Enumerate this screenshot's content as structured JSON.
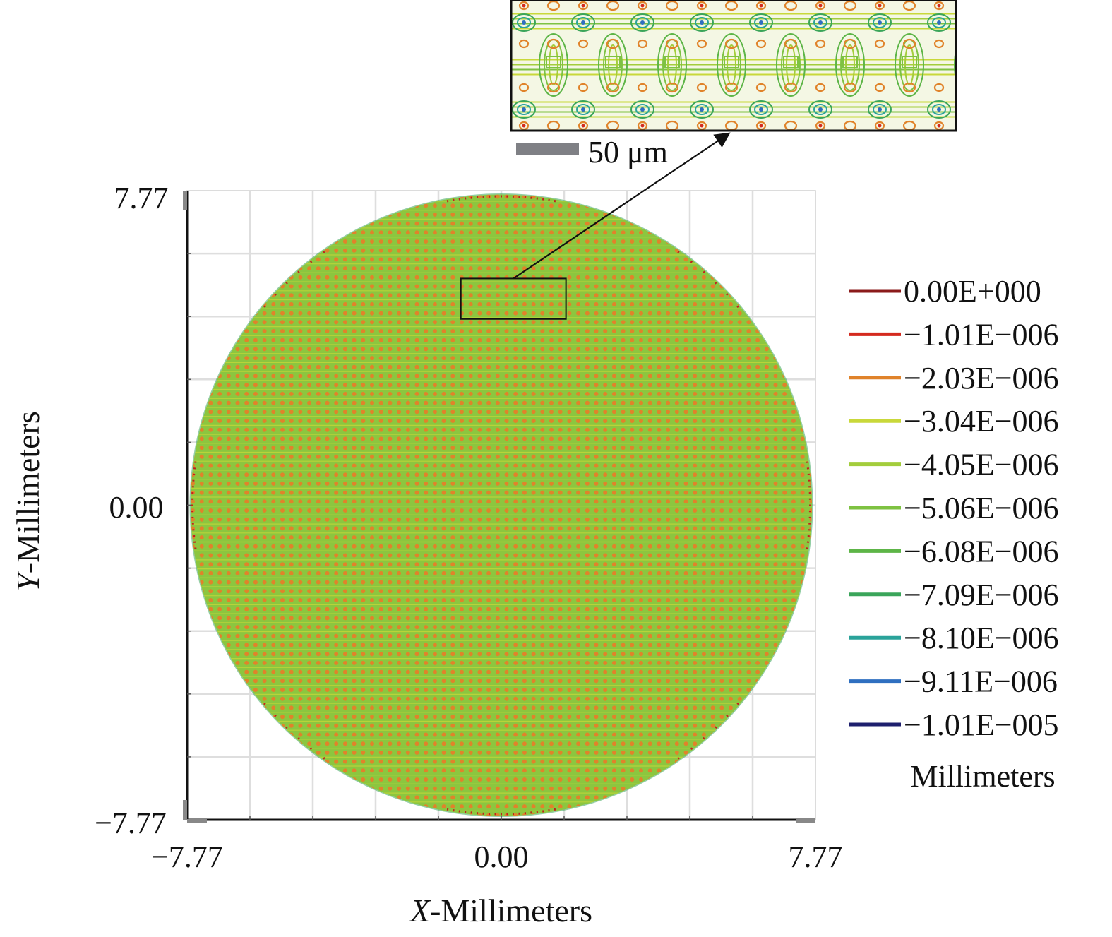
{
  "chart_data": {
    "type": "heatmap",
    "description_kind": "contour map of surface sag over a circular aperture",
    "xlabel": {
      "italic": "X",
      "rest": "-Millimeters"
    },
    "ylabel": {
      "italic": "Y",
      "rest": "-Millimeters"
    },
    "xlim": [
      -7.77,
      7.77
    ],
    "ylim": [
      -7.77,
      7.77
    ],
    "x_ticks": [
      "−7.77",
      "0.00",
      "7.77"
    ],
    "y_ticks": [
      "7.77",
      "0.00",
      "−7.77"
    ],
    "aperture_radius": 7.77,
    "grid": true,
    "legend_position": "right",
    "legend_unit": "Millimeters",
    "contour_levels": [
      {
        "label": "0.00E+000",
        "value": 0.0,
        "color": "#8b1a1a"
      },
      {
        "label": "−1.01E−006",
        "value": -1.01e-06,
        "color": "#d42a1e"
      },
      {
        "label": "−2.03E−006",
        "value": -2.03e-06,
        "color": "#e0832a"
      },
      {
        "label": "−3.04E−006",
        "value": -3.04e-06,
        "color": "#c9d83a"
      },
      {
        "label": "−4.05E−006",
        "value": -4.05e-06,
        "color": "#a3cd3c"
      },
      {
        "label": "−5.06E−006",
        "value": -5.06e-06,
        "color": "#7ec242"
      },
      {
        "label": "−6.08E−006",
        "value": -6.08e-06,
        "color": "#5db547"
      },
      {
        "label": "−7.09E−006",
        "value": -7.09e-06,
        "color": "#3aa55a"
      },
      {
        "label": "−8.10E−006",
        "value": -8.1e-06,
        "color": "#2aa39a"
      },
      {
        "label": "−9.11E−006",
        "value": -9.11e-06,
        "color": "#2f6fc0"
      },
      {
        "label": "−1.01E−005",
        "value": -1.01e-05,
        "color": "#1e1f6e"
      }
    ],
    "fill_colors": {
      "base": "#8cc63f",
      "dot": "#e0832a",
      "edge_tick": "#c41e1e"
    },
    "zoom_region_mm": {
      "x": [
        -1.0,
        1.6
      ],
      "y": [
        4.6,
        5.6
      ]
    },
    "inset": {
      "scale_bar_label": "50 μm",
      "background": "#f4f7e4",
      "border_color": "#111111"
    }
  }
}
